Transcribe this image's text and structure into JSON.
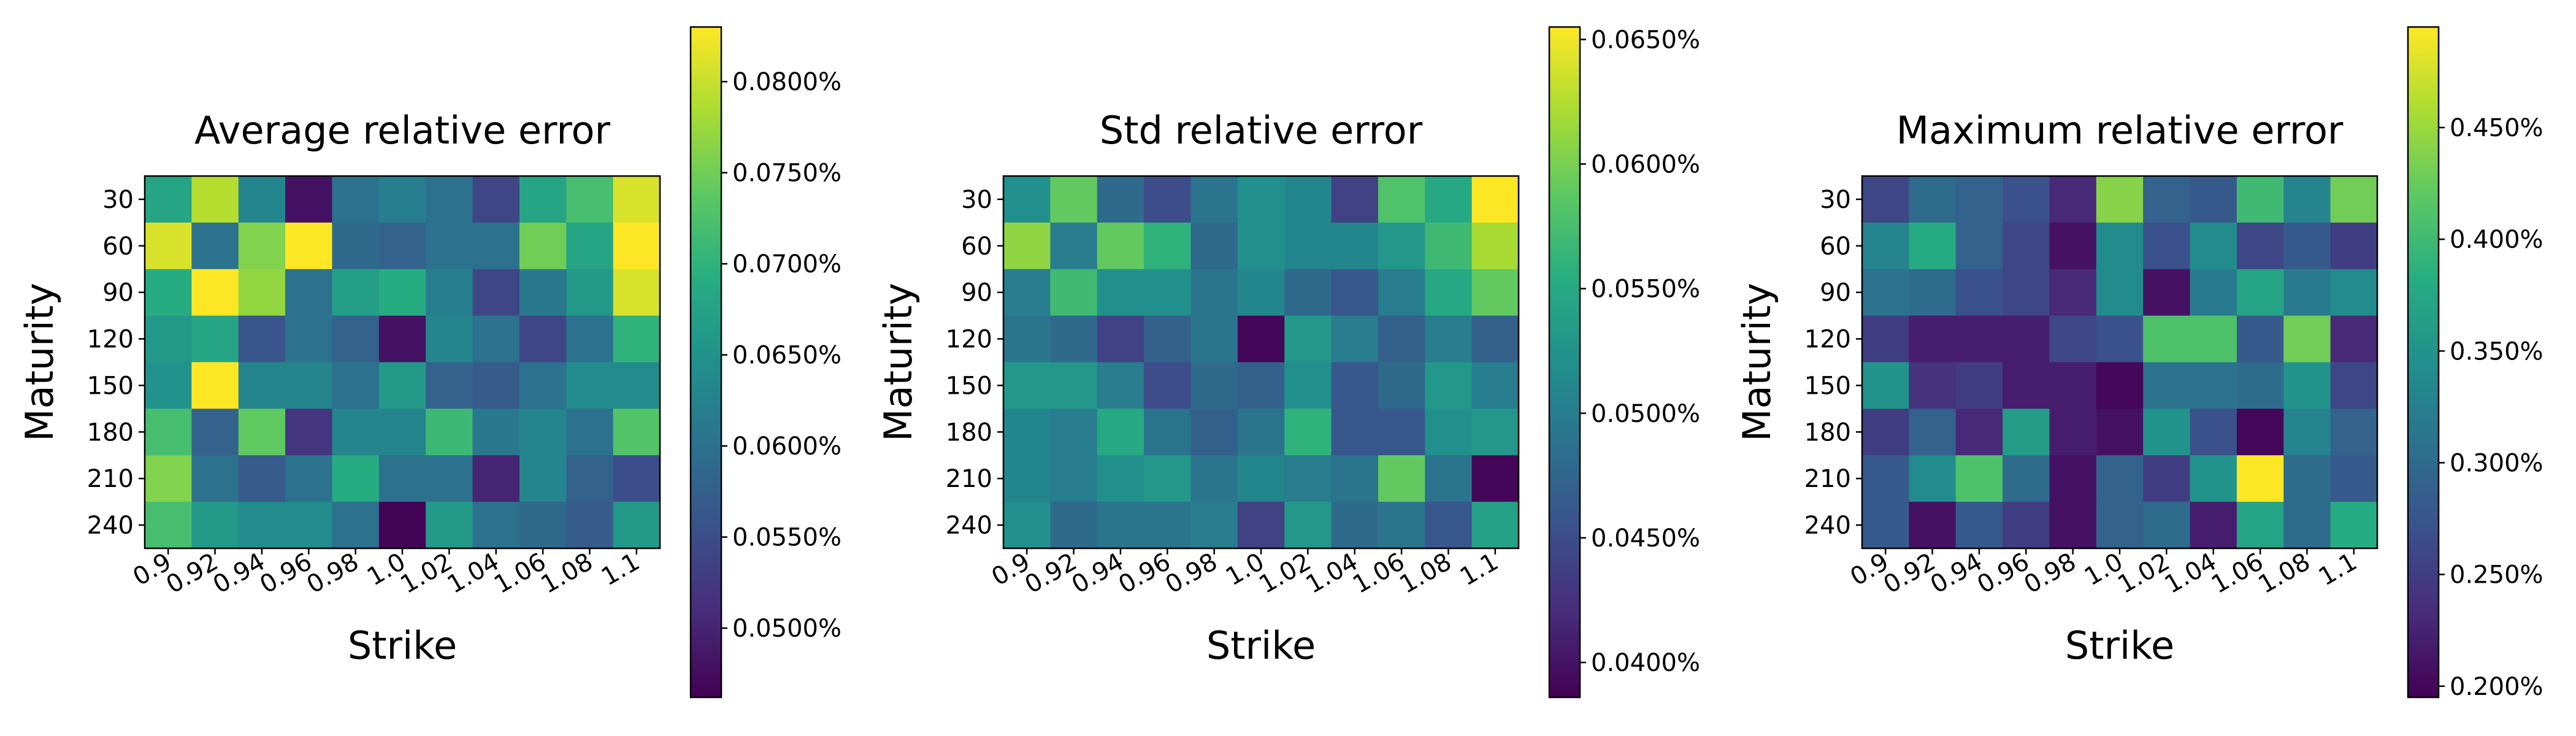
{
  "chart_data": [
    {
      "type": "heatmap",
      "title": "Average relative error",
      "xlabel": "Strike",
      "ylabel": "Maturity",
      "x_categories": [
        "0.9",
        "0.92",
        "0.94",
        "0.96",
        "0.98",
        "1.0",
        "1.02",
        "1.04",
        "1.06",
        "1.08",
        "1.1"
      ],
      "y_categories": [
        "30",
        "60",
        "90",
        "120",
        "150",
        "180",
        "210",
        "240"
      ],
      "colormap": "viridis",
      "vmin": 0.0462,
      "vmax": 0.083,
      "colorbar_ticks": [
        "0.0500%",
        "0.0550%",
        "0.0600%",
        "0.0650%",
        "0.0700%",
        "0.0750%",
        "0.0800%"
      ],
      "colorbar_tick_values": [
        0.05,
        0.055,
        0.06,
        0.065,
        0.07,
        0.075,
        0.08
      ],
      "values": [
        [
          0.068,
          0.079,
          0.063,
          0.048,
          0.06,
          0.062,
          0.06,
          0.054,
          0.068,
          0.072,
          0.081
        ],
        [
          0.081,
          0.06,
          0.076,
          0.083,
          0.059,
          0.058,
          0.06,
          0.06,
          0.075,
          0.068,
          0.083
        ],
        [
          0.069,
          0.083,
          0.077,
          0.06,
          0.067,
          0.069,
          0.062,
          0.054,
          0.061,
          0.066,
          0.081
        ],
        [
          0.066,
          0.068,
          0.056,
          0.06,
          0.058,
          0.048,
          0.063,
          0.06,
          0.054,
          0.06,
          0.07
        ],
        [
          0.065,
          0.083,
          0.063,
          0.063,
          0.06,
          0.066,
          0.058,
          0.057,
          0.06,
          0.064,
          0.064
        ],
        [
          0.072,
          0.058,
          0.074,
          0.052,
          0.063,
          0.063,
          0.071,
          0.061,
          0.063,
          0.06,
          0.073
        ],
        [
          0.076,
          0.06,
          0.057,
          0.06,
          0.069,
          0.06,
          0.06,
          0.05,
          0.063,
          0.058,
          0.055
        ],
        [
          0.072,
          0.066,
          0.064,
          0.064,
          0.06,
          0.0465,
          0.066,
          0.06,
          0.059,
          0.057,
          0.066
        ]
      ]
    },
    {
      "type": "heatmap",
      "title": "Std relative error",
      "xlabel": "Strike",
      "ylabel": "Maturity",
      "x_categories": [
        "0.9",
        "0.92",
        "0.94",
        "0.96",
        "0.98",
        "1.0",
        "1.02",
        "1.04",
        "1.06",
        "1.08",
        "1.1"
      ],
      "y_categories": [
        "30",
        "60",
        "90",
        "120",
        "150",
        "180",
        "210",
        "240"
      ],
      "colormap": "viridis",
      "vmin": 0.0386,
      "vmax": 0.0655,
      "colorbar_ticks": [
        "0.0400%",
        "0.0450%",
        "0.0500%",
        "0.0550%",
        "0.0600%",
        "0.0650%"
      ],
      "colorbar_tick_values": [
        0.04,
        0.045,
        0.05,
        0.055,
        0.06,
        0.065
      ],
      "values": [
        [
          0.052,
          0.059,
          0.048,
          0.045,
          0.049,
          0.052,
          0.051,
          0.044,
          0.058,
          0.055,
          0.0655
        ],
        [
          0.061,
          0.05,
          0.059,
          0.056,
          0.048,
          0.052,
          0.051,
          0.051,
          0.053,
          0.057,
          0.062
        ],
        [
          0.05,
          0.057,
          0.052,
          0.052,
          0.049,
          0.051,
          0.048,
          0.046,
          0.05,
          0.055,
          0.059
        ],
        [
          0.049,
          0.048,
          0.044,
          0.047,
          0.049,
          0.039,
          0.053,
          0.05,
          0.047,
          0.05,
          0.047
        ],
        [
          0.053,
          0.053,
          0.05,
          0.045,
          0.048,
          0.047,
          0.052,
          0.046,
          0.048,
          0.053,
          0.05
        ],
        [
          0.051,
          0.05,
          0.055,
          0.049,
          0.047,
          0.049,
          0.056,
          0.046,
          0.046,
          0.052,
          0.053
        ],
        [
          0.051,
          0.05,
          0.052,
          0.053,
          0.049,
          0.051,
          0.05,
          0.049,
          0.059,
          0.049,
          0.039
        ],
        [
          0.052,
          0.048,
          0.049,
          0.049,
          0.05,
          0.044,
          0.053,
          0.048,
          0.049,
          0.046,
          0.054
        ]
      ]
    },
    {
      "type": "heatmap",
      "title": "Maximum relative error",
      "xlabel": "Strike",
      "ylabel": "Maturity",
      "x_categories": [
        "0.9",
        "0.92",
        "0.94",
        "0.96",
        "0.98",
        "1.0",
        "1.02",
        "1.04",
        "1.06",
        "1.08",
        "1.1"
      ],
      "y_categories": [
        "30",
        "60",
        "90",
        "120",
        "150",
        "180",
        "210",
        "240"
      ],
      "colormap": "viridis",
      "vmin": 0.195,
      "vmax": 0.495,
      "colorbar_ticks": [
        "0.200%",
        "0.250%",
        "0.300%",
        "0.350%",
        "0.400%",
        "0.450%"
      ],
      "colorbar_tick_values": [
        0.2,
        0.25,
        0.3,
        0.35,
        0.4,
        0.45
      ],
      "values": [
        [
          0.26,
          0.3,
          0.29,
          0.27,
          0.23,
          0.44,
          0.29,
          0.28,
          0.4,
          0.33,
          0.43
        ],
        [
          0.33,
          0.38,
          0.29,
          0.26,
          0.21,
          0.34,
          0.27,
          0.34,
          0.26,
          0.28,
          0.25
        ],
        [
          0.31,
          0.3,
          0.27,
          0.26,
          0.23,
          0.34,
          0.21,
          0.32,
          0.37,
          0.32,
          0.34
        ],
        [
          0.25,
          0.22,
          0.22,
          0.22,
          0.26,
          0.27,
          0.41,
          0.41,
          0.28,
          0.43,
          0.23
        ],
        [
          0.35,
          0.24,
          0.25,
          0.22,
          0.22,
          0.2,
          0.31,
          0.31,
          0.3,
          0.35,
          0.26
        ],
        [
          0.25,
          0.29,
          0.23,
          0.36,
          0.22,
          0.21,
          0.35,
          0.27,
          0.2,
          0.33,
          0.29
        ],
        [
          0.28,
          0.34,
          0.41,
          0.3,
          0.21,
          0.29,
          0.25,
          0.35,
          0.495,
          0.3,
          0.28
        ],
        [
          0.28,
          0.21,
          0.28,
          0.25,
          0.21,
          0.29,
          0.3,
          0.22,
          0.37,
          0.3,
          0.38
        ]
      ]
    }
  ]
}
